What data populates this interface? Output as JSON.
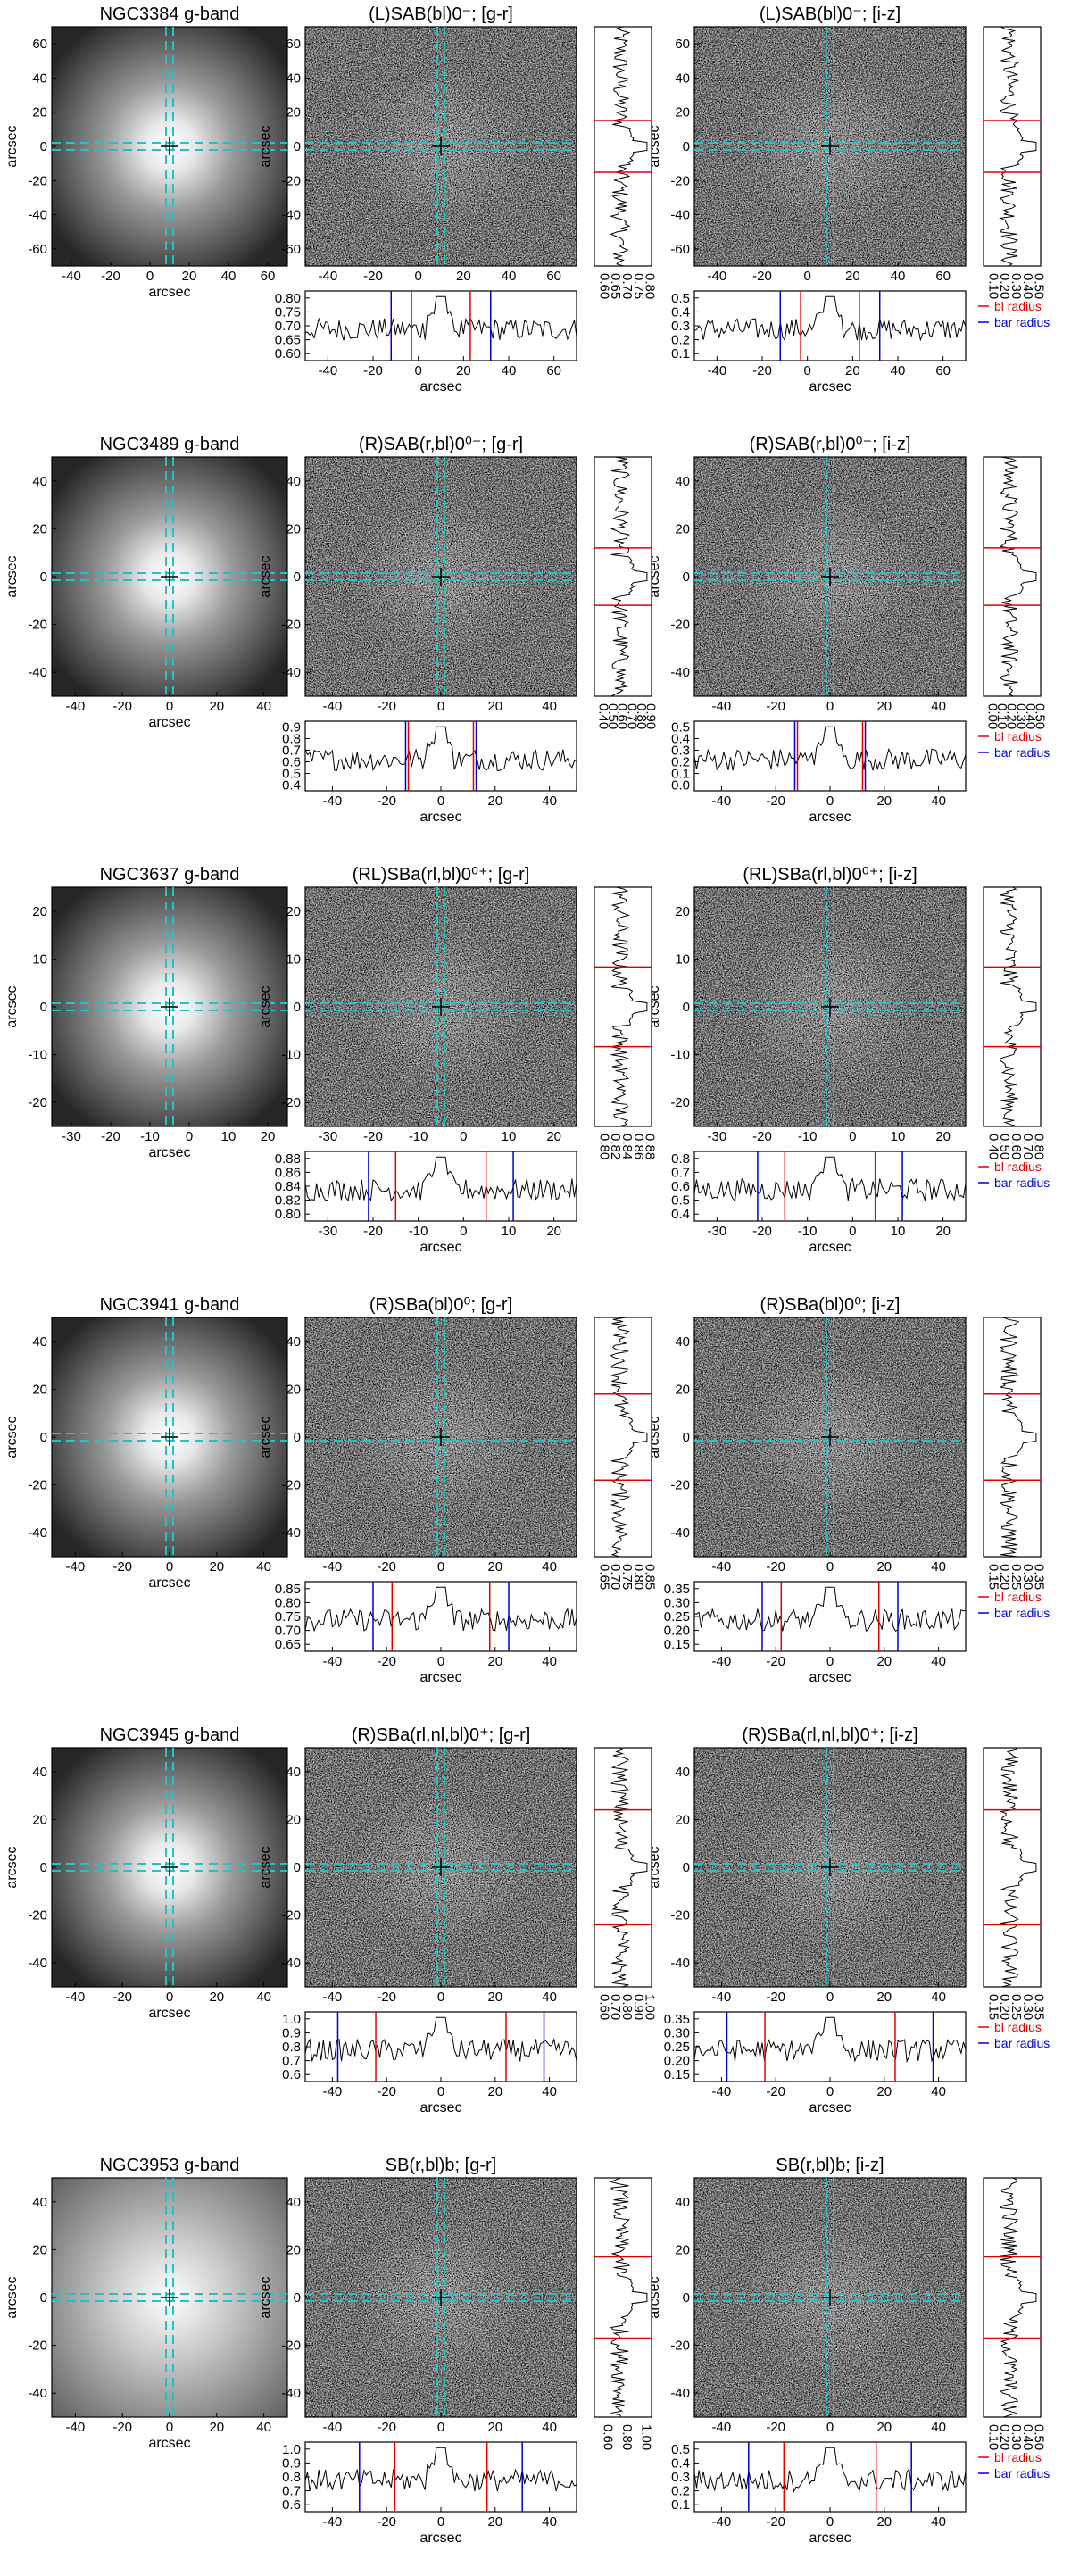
{
  "figure": {
    "axis_label": "arcsec",
    "colors": {
      "bl_line": "#e00000",
      "bar_line": "#0000d0",
      "crosshair": "#21c4c4"
    },
    "legend": {
      "bl": "bl radius",
      "bar": "bar radius"
    },
    "rows": [
      {
        "galaxy": "NGC3384",
        "titles": {
          "g": "NGC3384 g-band",
          "gr": "(L)SAB(bl)0⁻; [g-r]",
          "iz": "(L)SAB(bl)0⁻; [i-z]"
        },
        "img_ticks": [
          "-40",
          "-20",
          "0",
          "20",
          "40",
          "60"
        ],
        "img_yticks": [
          "60",
          "40",
          "20",
          "0",
          "-20",
          "-40",
          "-60"
        ],
        "gr": {
          "xticks": [
            "-40",
            "-20",
            "0",
            "20",
            "40",
            "60"
          ],
          "prof_h_ticks": [
            "0.80",
            "0.75",
            "0.70",
            "0.65",
            "0.60"
          ],
          "prof_v_ticks": [
            "0.60",
            "0.65",
            "0.70",
            "0.75",
            "0.80"
          ],
          "bl_radius": 13,
          "bar_radius": 22
        },
        "iz": {
          "xticks": [
            "-40",
            "-20",
            "0",
            "20",
            "40",
            "60"
          ],
          "prof_h_ticks": [
            "0.5",
            "0.4",
            "0.3",
            "0.2",
            "0.1"
          ],
          "prof_v_ticks": [
            "0.10",
            "0.20",
            "0.30",
            "0.40",
            "0.50"
          ],
          "bl_radius": 13,
          "bar_radius": 22
        }
      },
      {
        "galaxy": "NGC3489",
        "titles": {
          "g": "NGC3489 g-band",
          "gr": "(R)SAB(r,bl)0⁰⁻; [g-r]",
          "iz": "(R)SAB(r,bl)0⁰⁻; [i-z]"
        },
        "img_ticks": [
          "-40",
          "-20",
          "0",
          "20",
          "40"
        ],
        "img_yticks": [
          "40",
          "20",
          "0",
          "-20",
          "-40"
        ],
        "gr": {
          "xticks": [
            "-40",
            "-20",
            "0",
            "20",
            "40"
          ],
          "prof_h_ticks": [
            "0.9",
            "0.8",
            "0.7",
            "0.6",
            "0.5",
            "0.4"
          ],
          "prof_v_ticks": [
            "0.40",
            "0.50",
            "0.60",
            "0.70",
            "0.80",
            "0.90"
          ],
          "bl_radius": 12,
          "bar_radius": 13
        },
        "iz": {
          "xticks": [
            "-40",
            "-20",
            "0",
            "20",
            "40"
          ],
          "prof_h_ticks": [
            "0.5",
            "0.4",
            "0.3",
            "0.2",
            "0.1",
            "0.0"
          ],
          "prof_v_ticks": [
            "0.00",
            "0.10",
            "0.20",
            "0.30",
            "0.40",
            "0.50"
          ],
          "bl_radius": 12,
          "bar_radius": 13
        }
      },
      {
        "galaxy": "NGC3637",
        "titles": {
          "g": "NGC3637 g-band",
          "gr": "(RL)SBa(rl,bl)0⁰⁺; [g-r]",
          "iz": "(RL)SBa(rl,bl)0⁰⁺; [i-z]"
        },
        "img_ticks": [
          "-30",
          "-20",
          "-10",
          "0",
          "10",
          "20"
        ],
        "img_yticks": [
          "20",
          "10",
          "0",
          "-10",
          "-20"
        ],
        "gr": {
          "xticks": [
            "-30",
            "-20",
            "-10",
            "0",
            "10",
            "20"
          ],
          "prof_h_ticks": [
            "0.88",
            "0.86",
            "0.84",
            "0.82",
            "0.80"
          ],
          "prof_v_ticks": [
            "0.80",
            "0.82",
            "0.84",
            "0.86",
            "0.88"
          ],
          "bl_radius": 10,
          "bar_radius": 16
        },
        "iz": {
          "xticks": [
            "-30",
            "-20",
            "-10",
            "0",
            "10",
            "20"
          ],
          "prof_h_ticks": [
            "0.8",
            "0.7",
            "0.6",
            "0.5",
            "0.4"
          ],
          "prof_v_ticks": [
            "0.40",
            "0.50",
            "0.60",
            "0.70",
            "0.80"
          ],
          "bl_radius": 10,
          "bar_radius": 16
        }
      },
      {
        "galaxy": "NGC3941",
        "titles": {
          "g": "NGC3941 g-band",
          "gr": "(R)SBa(bl)0⁰; [g-r]",
          "iz": "(R)SBa(bl)0⁰; [i-z]"
        },
        "img_ticks": [
          "-40",
          "-20",
          "0",
          "20",
          "40"
        ],
        "img_yticks": [
          "40",
          "20",
          "0",
          "-20",
          "-40"
        ],
        "gr": {
          "xticks": [
            "-40",
            "-20",
            "0",
            "20",
            "40"
          ],
          "prof_h_ticks": [
            "0.85",
            "0.80",
            "0.75",
            "0.70",
            "0.65"
          ],
          "prof_v_ticks": [
            "0.65",
            "0.70",
            "0.75",
            "0.80",
            "0.85"
          ],
          "bl_radius": 18,
          "bar_radius": 25
        },
        "iz": {
          "xticks": [
            "-40",
            "-20",
            "0",
            "20",
            "40"
          ],
          "prof_h_ticks": [
            "0.35",
            "0.30",
            "0.25",
            "0.20",
            "0.15"
          ],
          "prof_v_ticks": [
            "0.15",
            "0.20",
            "0.25",
            "0.30",
            "0.35"
          ],
          "bl_radius": 18,
          "bar_radius": 25
        }
      },
      {
        "galaxy": "NGC3945",
        "titles": {
          "g": "NGC3945 g-band",
          "gr": "(R)SBa(rl,nl,bl)0⁺; [g-r]",
          "iz": "(R)SBa(rl,nl,bl)0⁺; [i-z]"
        },
        "img_ticks": [
          "-40",
          "-20",
          "0",
          "20",
          "40"
        ],
        "img_yticks": [
          "40",
          "20",
          "0",
          "-20",
          "-40"
        ],
        "gr": {
          "xticks": [
            "-40",
            "-20",
            "0",
            "20",
            "40"
          ],
          "prof_h_ticks": [
            "1.0",
            "0.9",
            "0.8",
            "0.7",
            "0.6"
          ],
          "prof_v_ticks": [
            "0.60",
            "0.70",
            "0.80",
            "0.90",
            "1.00"
          ],
          "bl_radius": 24,
          "bar_radius": 38
        },
        "iz": {
          "xticks": [
            "-40",
            "-20",
            "0",
            "20",
            "40"
          ],
          "prof_h_ticks": [
            "0.35",
            "0.30",
            "0.25",
            "0.20",
            "0.15"
          ],
          "prof_v_ticks": [
            "0.15",
            "0.20",
            "0.25",
            "0.30",
            "0.35"
          ],
          "bl_radius": 24,
          "bar_radius": 38
        }
      },
      {
        "galaxy": "NGC3953",
        "titles": {
          "g": "NGC3953 g-band",
          "gr": "SB(r,bl)b; [g-r]",
          "iz": "SB(r,bl)b; [i-z]"
        },
        "img_ticks": [
          "-40",
          "-20",
          "0",
          "20",
          "40"
        ],
        "img_yticks": [
          "40",
          "20",
          "0",
          "-20",
          "-40"
        ],
        "gr": {
          "xticks": [
            "-40",
            "-20",
            "0",
            "20",
            "40"
          ],
          "prof_h_ticks": [
            "1.0",
            "0.9",
            "0.8",
            "0.7",
            "0.6"
          ],
          "prof_v_ticks": [
            "0.60",
            "0.80",
            "1.00"
          ],
          "bl_radius": 17,
          "bar_radius": 30
        },
        "iz": {
          "xticks": [
            "-40",
            "-20",
            "0",
            "20",
            "40"
          ],
          "prof_h_ticks": [
            "0.5",
            "0.4",
            "0.3",
            "0.2",
            "0.1"
          ],
          "prof_v_ticks": [
            "0.10",
            "0.20",
            "0.30",
            "0.40",
            "0.50"
          ],
          "bl_radius": 17,
          "bar_radius": 30
        }
      }
    ]
  }
}
